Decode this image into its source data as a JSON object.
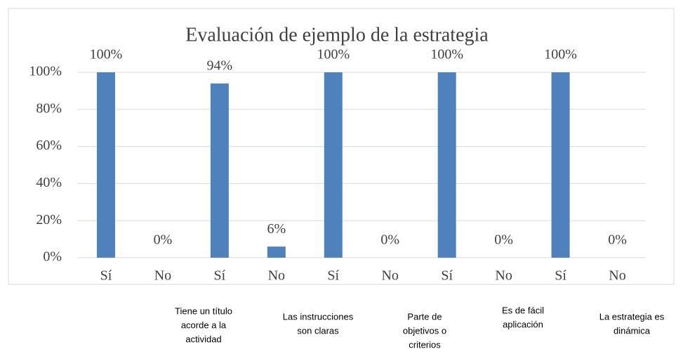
{
  "chart_data": {
    "type": "bar",
    "title": "Evaluación de ejemplo de la estrategia",
    "categories": [
      "Sí",
      "No",
      "Sí",
      "No",
      "Sí",
      "No",
      "Sí",
      "No",
      "Sí",
      "No"
    ],
    "values": [
      100,
      0,
      94,
      6,
      100,
      0,
      100,
      0,
      100,
      0
    ],
    "value_labels": [
      "100%",
      "0%",
      "94%",
      "6%",
      "100%",
      "0%",
      "100%",
      "0%",
      "100%",
      "0%"
    ],
    "group_labels": [
      [
        "Tiene un título",
        "acorde a la",
        "actividad"
      ],
      [
        "Las instrucciones",
        "son claras"
      ],
      [
        "Parte de",
        "objetivos o",
        "criterios"
      ],
      [
        "Es de fácil",
        "aplicación"
      ],
      [
        "La estrategia es",
        "dinámica"
      ]
    ],
    "color": "#4f81bd",
    "ylim": [
      0,
      100
    ],
    "yticks": [
      {
        "value": 0,
        "label": "0%"
      },
      {
        "value": 20,
        "label": "20%"
      },
      {
        "value": 40,
        "label": "40%"
      },
      {
        "value": 60,
        "label": "60%"
      },
      {
        "value": 80,
        "label": "80%"
      },
      {
        "value": 100,
        "label": "100%"
      }
    ],
    "grid": true
  }
}
